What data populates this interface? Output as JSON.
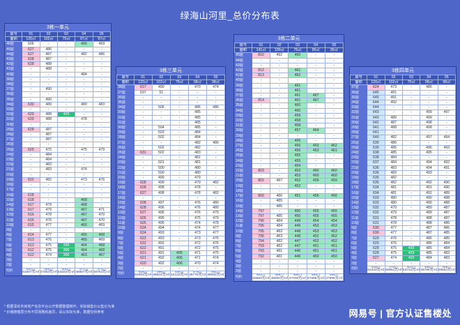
{
  "title": "绿海山河里_总价分布表",
  "blocks": [
    {
      "title": "3栋一单元",
      "units": [
        "01",
        "02",
        "03",
        "04",
        "05"
      ],
      "areas": [
        "120㎡",
        "102㎡",
        "75㎡",
        "97㎡",
        "97㎡"
      ],
      "totals": [
        "620万",
        "483万",
        "400万",
        "471万",
        "473万"
      ],
      "unit_prices": [
        "51667元/㎡",
        "47353元/㎡",
        "53333元/㎡",
        "48557元/㎡",
        "48763元/㎡"
      ]
    },
    {
      "title": "3栋三单元",
      "units": [
        "01",
        "02",
        "03",
        "04",
        "05"
      ],
      "areas": [
        "120㎡",
        "102㎡",
        "75㎡",
        "98㎡",
        "98㎡"
      ],
      "totals": [
        "625万",
        "498万",
        "406万",
        "478万",
        "481万"
      ],
      "unit_prices": [
        "52083元/㎡",
        "48824元/㎡",
        "54133元/㎡",
        "48776元/㎡",
        "49082元/㎡"
      ]
    },
    {
      "title": "3栋二单元",
      "units": [
        "01",
        "02",
        "03",
        "04",
        "05"
      ],
      "areas": [
        "141㎡",
        "100㎡",
        "75㎡",
        "95㎡",
        "95㎡"
      ],
      "totals": [
        "802万",
        "485万",
        "455万",
        "455万",
        "455万"
      ],
      "unit_prices": [
        "56880元/㎡",
        "48500元/㎡",
        "47200元/㎡",
        "47895元/㎡",
        "47895元/㎡"
      ]
    },
    {
      "title": "3栋四单元",
      "units": [
        "01",
        "02",
        "03",
        "04",
        "05"
      ],
      "areas": [
        "120㎡",
        "102㎡",
        "75㎡",
        "98㎡",
        "98㎡"
      ],
      "totals": [
        "628万",
        "478万",
        "403万",
        "488万",
        "486万"
      ],
      "unit_prices": [
        "52333元/㎡",
        "46863元/㎡",
        "53733元/㎡",
        "49796元/㎡",
        "49592元/㎡"
      ]
    }
  ],
  "labels": {
    "room": "房号",
    "area": "面积",
    "total": "均价"
  },
  "footnotes": [
    "* 根据深圳市房地产信息平台公开数据整理制作，实际销售价以售价为准",
    "* 价格随楼层分布不同而略有差异，请以实际为准，数据仅供参考"
  ],
  "watermark": "网易号 | 官方认证售楼处",
  "floors": {
    "b0": [
      "46层",
      "45层",
      "44层",
      "43层",
      "42层",
      "41层",
      "40层",
      "39层",
      "38层",
      "37层",
      "36层",
      "35层",
      "34层",
      "33层",
      "32层",
      "31层",
      "30层",
      "29层",
      "28层",
      "27层",
      "26层",
      "25层",
      "24层",
      "23层",
      "22层",
      "21层",
      "20层",
      "19层",
      "18层",
      "17层",
      "16层",
      "15层",
      "14层",
      "13层",
      "12层",
      "11层",
      "10层",
      "9层",
      "8层",
      "7层",
      "6层",
      "5层",
      "4层",
      "3层",
      "2层"
    ],
    "b1": [
      "38层",
      "37层",
      "36层",
      "35层",
      "34层",
      "33层",
      "32层",
      "31层",
      "30层",
      "29层",
      "28层",
      "27层",
      "26层",
      "25层",
      "24层",
      "23层",
      "22层",
      "21层",
      "20层",
      "19层",
      "18层",
      "17层",
      "16层",
      "15层",
      "14层",
      "13层",
      "12层",
      "11层",
      "10层",
      "9层",
      "8层",
      "7层",
      "6层",
      "5层",
      "4层",
      "3层",
      "2层"
    ],
    "b2": [
      "45层",
      "44层",
      "43层",
      "42层",
      "41层",
      "40层",
      "39层",
      "38层",
      "37层",
      "36层",
      "35层",
      "34层",
      "33层",
      "32层",
      "31层",
      "30层",
      "29层",
      "28层",
      "27层",
      "26层",
      "25层",
      "24层",
      "23层",
      "22层",
      "21层",
      "20层",
      "19层",
      "18层",
      "17层",
      "16层",
      "15层",
      "14层",
      "13层",
      "12层",
      "11层",
      "10层",
      "9层",
      "8层",
      "7层",
      "6层",
      "5层",
      "4层",
      "3层",
      "2层"
    ],
    "b3": [
      "37层",
      "36层",
      "35层",
      "34层",
      "33层",
      "32层",
      "31层",
      "30层",
      "29层",
      "28层",
      "27层",
      "26层",
      "25层",
      "24层",
      "23层",
      "22层",
      "21层",
      "20层",
      "19层",
      "18层",
      "17层",
      "16层",
      "15层",
      "14层",
      "13层",
      "12层",
      "11层",
      "10层",
      "9层",
      "8层",
      "7层",
      "6层",
      "5层",
      "4层",
      "3层",
      "2层"
    ]
  },
  "rows": {
    "b0": [
      [
        "606",
        "-",
        "-",
        "466",
        "469"
      ],
      [
        "627",
        "486",
        "-",
        "-",
        "-"
      ],
      [
        "627",
        "487",
        "-",
        "482",
        "486"
      ],
      [
        "628",
        "487",
        "-",
        "-",
        "-"
      ],
      [
        "628",
        "488",
        "-",
        "-",
        "-"
      ],
      [
        "-",
        "488",
        "-",
        "-",
        "-"
      ],
      [
        "-",
        "-",
        "-",
        "484",
        "-"
      ],
      [
        "-",
        "-",
        "-",
        "-",
        "-"
      ],
      [
        "-",
        "-",
        "-",
        "-",
        "-"
      ],
      [
        "-",
        "490",
        "-",
        "-",
        "-"
      ],
      [
        "-",
        "-",
        "-",
        "-",
        "-"
      ],
      [
        "-",
        "490",
        "-",
        "-",
        "-"
      ],
      [
        "630",
        "489",
        "-",
        "480",
        "483"
      ],
      [
        "-",
        "-",
        "-",
        "-",
        "-"
      ],
      [
        "629",
        "488",
        "403",
        "-",
        "-"
      ],
      [
        "629",
        "488",
        "-",
        "478",
        "-"
      ],
      [
        "-",
        "-",
        "-",
        "-",
        "-"
      ],
      [
        "628",
        "487",
        "-",
        "-",
        "-"
      ],
      [
        "-",
        "487",
        "-",
        "-",
        "-"
      ],
      [
        "-",
        "487",
        "-",
        "-",
        "-"
      ],
      [
        "-",
        "-",
        "-",
        "-",
        "-"
      ],
      [
        "625",
        "475",
        "-",
        "475",
        "479"
      ],
      [
        "-",
        "484",
        "-",
        "-",
        "-"
      ],
      [
        "-",
        "484",
        "-",
        "-",
        "-"
      ],
      [
        "-",
        "483",
        "-",
        "-",
        "-"
      ],
      [
        "-",
        "483",
        "-",
        "474",
        "-"
      ],
      [
        "-",
        "-",
        "-",
        "-",
        "-"
      ],
      [
        "622",
        "482",
        "-",
        "473",
        "476"
      ],
      [
        "-",
        "-",
        "-",
        "-",
        "-"
      ],
      [
        "-",
        "-",
        "-",
        "-",
        "-"
      ],
      [
        "618",
        "-",
        "-",
        "-",
        "-"
      ],
      [
        "618",
        "-",
        "-",
        "468",
        "-"
      ],
      [
        "617",
        "479",
        "-",
        "468",
        "-"
      ],
      [
        "617",
        "479",
        "-",
        "467",
        "471"
      ],
      [
        "616",
        "478",
        "-",
        "467",
        "470"
      ],
      [
        "616",
        "476",
        "-",
        "467",
        "470"
      ],
      [
        "615",
        "477",
        "-",
        "466",
        "469"
      ],
      [
        "-",
        "-",
        "-",
        "-",
        "-"
      ],
      [
        "614",
        "477",
        "-",
        "465",
        "468"
      ],
      [
        "613",
        "476",
        "-",
        "465",
        "469"
      ],
      [
        "613",
        "475",
        "396",
        "464",
        "468"
      ],
      [
        "612",
        "475",
        "396",
        "464",
        "468"
      ],
      [
        "612",
        "474",
        "396",
        "463",
        "467"
      ],
      [
        "-",
        "-",
        "-",
        "-",
        "-"
      ],
      [
        "-",
        "-",
        "-",
        "-",
        "-"
      ]
    ],
    "b1": [
      [
        "617",
        "490",
        "-",
        "470",
        "474"
      ],
      [
        "637",
        "51",
        "-",
        "-",
        "-"
      ],
      [
        "-",
        "-",
        "-",
        "-",
        "-"
      ],
      [
        "-",
        "-",
        "-",
        "-",
        "-"
      ],
      [
        "-",
        "506",
        "-",
        "486",
        "486"
      ],
      [
        "-",
        "-",
        "-",
        "485",
        "-"
      ],
      [
        "-",
        "-",
        "-",
        "485",
        "-"
      ],
      [
        "-",
        "-",
        "-",
        "485",
        "-"
      ],
      [
        "-",
        "504",
        "-",
        "485",
        "-"
      ],
      [
        "-",
        "503",
        "-",
        "484",
        "-"
      ],
      [
        "-",
        "502",
        "-",
        "484",
        "-"
      ],
      [
        "-",
        "-",
        "-",
        "482",
        "486"
      ],
      [
        "-",
        "502",
        "-",
        "482",
        "-"
      ],
      [
        "631",
        "502",
        "-",
        "483",
        "-"
      ],
      [
        "-",
        "-",
        "-",
        "481",
        "-"
      ],
      [
        "-",
        "501",
        "-",
        "481",
        "-"
      ],
      [
        "-",
        "500",
        "-",
        "480",
        "-"
      ],
      [
        "-",
        "500",
        "-",
        "480",
        "-"
      ],
      [
        "-",
        "499",
        "-",
        "479",
        "-"
      ],
      [
        "628",
        "499",
        "-",
        "479",
        "482"
      ],
      [
        "628",
        "498",
        "-",
        "478",
        "-"
      ],
      [
        "627",
        "498",
        "-",
        "478",
        "482"
      ],
      [
        "-",
        "-",
        "-",
        "-",
        "-"
      ],
      [
        "628",
        "497",
        "-",
        "476",
        "480"
      ],
      [
        "628",
        "496",
        "-",
        "476",
        "480"
      ],
      [
        "627",
        "496",
        "-",
        "476",
        "479"
      ],
      [
        "626",
        "495",
        "-",
        "475",
        "479"
      ],
      [
        "625",
        "495",
        "-",
        "474",
        "478"
      ],
      [
        "624",
        "494",
        "-",
        "474",
        "477"
      ],
      [
        "624",
        "493",
        "-",
        "473",
        "477"
      ],
      [
        "623",
        "493",
        "-",
        "473",
        "476"
      ],
      [
        "622",
        "492",
        "-",
        "472",
        "476"
      ],
      [
        "622",
        "491",
        "-",
        "472",
        "475"
      ],
      [
        "621",
        "491",
        "406",
        "471",
        "475"
      ],
      [
        "621",
        "492",
        "406",
        "471",
        "474"
      ],
      [
        "620",
        "492",
        "406",
        "470",
        "474"
      ],
      [
        "-",
        "-",
        "-",
        "-",
        "-"
      ]
    ],
    "b2": [
      [
        "810",
        "492",
        "460",
        "-",
        "-"
      ],
      [
        "-",
        "-",
        "-",
        "-",
        "-"
      ],
      [
        "-",
        "-",
        "-",
        "-",
        "-"
      ],
      [
        "812",
        "-",
        "461",
        "-",
        "-"
      ],
      [
        "813",
        "-",
        "462",
        "-",
        "-"
      ],
      [
        "-",
        "-",
        "-",
        "-",
        "-"
      ],
      [
        "-",
        "-",
        "461",
        "-",
        "-"
      ],
      [
        "-",
        "-",
        "461",
        "-",
        "-"
      ],
      [
        "-",
        "-",
        "461",
        "467",
        "-"
      ],
      [
        "814",
        "-",
        "461",
        "467",
        "-"
      ],
      [
        "-",
        "-",
        "460",
        "-",
        "-"
      ],
      [
        "-",
        "-",
        "460",
        "-",
        "-"
      ],
      [
        "-",
        "-",
        "459",
        "-",
        "-"
      ],
      [
        "-",
        "-",
        "458",
        "-",
        "-"
      ],
      [
        "-",
        "-",
        "458",
        "-",
        "-"
      ],
      [
        "-",
        "-",
        "457",
        "464",
        "-"
      ],
      [
        "-",
        "-",
        "-",
        "-",
        "-"
      ],
      [
        "-",
        "-",
        "456",
        "-",
        "-"
      ],
      [
        "-",
        "-",
        "456",
        "463",
        "462"
      ],
      [
        "-",
        "-",
        "455",
        "463",
        "461"
      ],
      [
        "-",
        "-",
        "455",
        "-",
        "-"
      ],
      [
        "-",
        "-",
        "455",
        "-",
        "-"
      ],
      [
        "-",
        "-",
        "454",
        "-",
        "-"
      ],
      [
        "803",
        "-",
        "453",
        "460",
        "460"
      ],
      [
        "-",
        "-",
        "453",
        "460",
        "460"
      ],
      [
        "802",
        "487",
        "452",
        "459",
        "459"
      ],
      [
        "-",
        "-",
        "452",
        "-",
        "-"
      ],
      [
        "-",
        "-",
        "-",
        "-",
        "-"
      ],
      [
        "800",
        "486",
        "451",
        "456",
        "456"
      ],
      [
        "-",
        "485",
        "-",
        "-",
        "-"
      ],
      [
        "-",
        "485",
        "-",
        "-",
        "-"
      ],
      [
        "797",
        "-",
        "450",
        "455",
        "455"
      ],
      [
        "797",
        "485",
        "450",
        "455",
        "455"
      ],
      [
        "796",
        "484",
        "449",
        "454",
        "454"
      ],
      [
        "796",
        "484",
        "449",
        "453",
        "453"
      ],
      [
        "795",
        "483",
        "448",
        "453",
        "453"
      ],
      [
        "795",
        "483",
        "448",
        "452",
        "452"
      ],
      [
        "794",
        "482",
        "447",
        "452",
        "452"
      ],
      [
        "793",
        "482",
        "447",
        "451",
        "451"
      ],
      [
        "793",
        "481",
        "446",
        "451",
        "451"
      ],
      [
        "792",
        "481",
        "446",
        "450",
        "450"
      ],
      [
        "-",
        "-",
        "-",
        "-",
        "-"
      ],
      [
        "-",
        "-",
        "-",
        "-",
        "-"
      ],
      [
        "-",
        "-",
        "-",
        "-",
        "-"
      ]
    ],
    "b3": [
      [
        "624",
        "473",
        "-",
        "486",
        "-"
      ],
      [
        "645",
        "491",
        "-",
        "-",
        "-"
      ],
      [
        "645",
        "491",
        "-",
        "-",
        "-"
      ],
      [
        "644",
        "492",
        "-",
        "-",
        "-"
      ],
      [
        "644",
        "-",
        "-",
        "-",
        "-"
      ],
      [
        "643",
        "-",
        "-",
        "499",
        "497"
      ],
      [
        "643",
        "489",
        "-",
        "499",
        "-"
      ],
      [
        "642",
        "487",
        "-",
        "498",
        "-"
      ],
      [
        "641",
        "488",
        "-",
        "498",
        "-"
      ],
      [
        "641",
        "-",
        "-",
        "-",
        "-"
      ],
      [
        "640",
        "482",
        "-",
        "497",
        "494"
      ],
      [
        "639",
        "486",
        "-",
        "-",
        "-"
      ],
      [
        "639",
        "485",
        "-",
        "496",
        "493"
      ],
      [
        "638",
        "485",
        "-",
        "495",
        "-"
      ],
      [
        "638",
        "484",
        "-",
        "-",
        "-"
      ],
      [
        "637",
        "484",
        "-",
        "494",
        "492"
      ],
      [
        "636",
        "483",
        "-",
        "494",
        "491"
      ],
      [
        "636",
        "483",
        "-",
        "493",
        "-"
      ],
      [
        "635",
        "482",
        "-",
        "-",
        "-"
      ],
      [
        "635",
        "482",
        "-",
        "492",
        "490"
      ],
      [
        "634",
        "481",
        "-",
        "491",
        "490"
      ],
      [
        "634",
        "481",
        "-",
        "491",
        "489"
      ],
      [
        "633",
        "480",
        "-",
        "490",
        "488"
      ],
      [
        "633",
        "480",
        "-",
        "490",
        "488"
      ],
      [
        "632",
        "479",
        "-",
        "489",
        "487"
      ],
      [
        "632",
        "479",
        "-",
        "489",
        "487"
      ],
      [
        "631",
        "478",
        "-",
        "488",
        "487"
      ],
      [
        "631",
        "478",
        "-",
        "488",
        "486"
      ],
      [
        "630",
        "477",
        "-",
        "487",
        "486"
      ],
      [
        "630",
        "477",
        "-",
        "487",
        "485"
      ],
      [
        "629",
        "476",
        "-",
        "486",
        "485"
      ],
      [
        "629",
        "476",
        "-",
        "486",
        "484"
      ],
      [
        "628",
        "475",
        "403",
        "485",
        "484"
      ],
      [
        "628",
        "475",
        "403",
        "485",
        "483"
      ],
      [
        "627",
        "474",
        "403",
        "484",
        "483"
      ],
      [
        "-",
        "-",
        "-",
        "-",
        "-"
      ]
    ]
  }
}
